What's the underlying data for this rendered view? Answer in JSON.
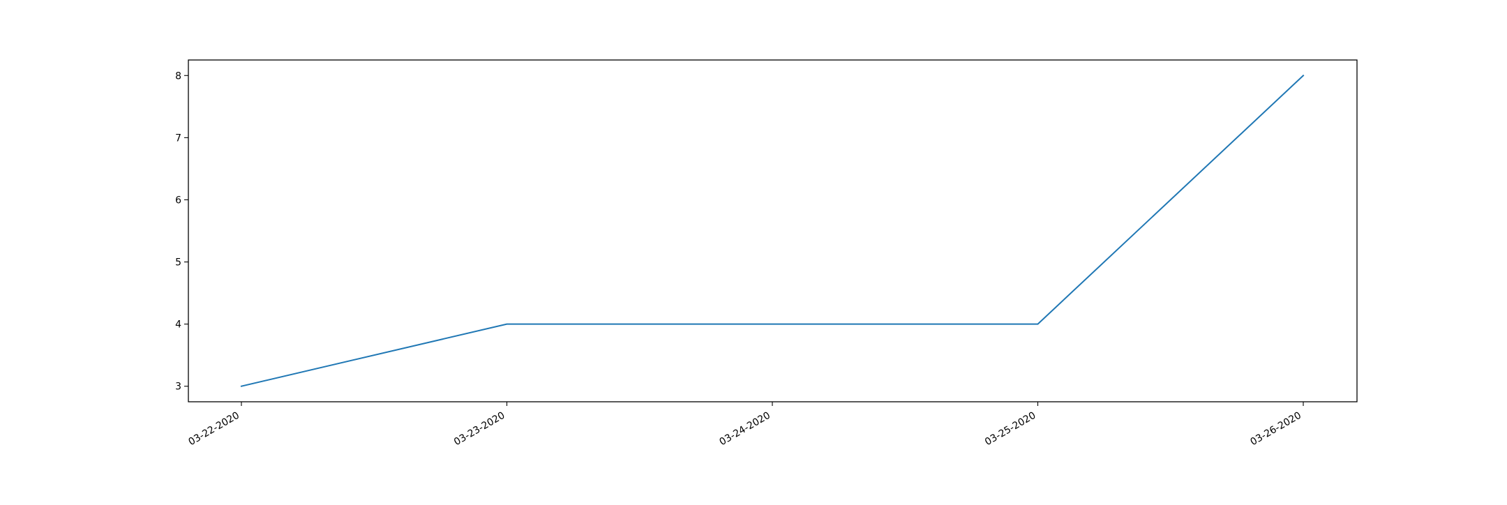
{
  "chart_data": {
    "type": "line",
    "title": "",
    "xlabel": "",
    "ylabel": "",
    "x": [
      "03-22-2020",
      "03-23-2020",
      "03-24-2020",
      "03-25-2020",
      "03-26-2020"
    ],
    "series": [
      {
        "values": [
          3,
          4,
          4,
          4,
          8
        ],
        "color": "#1f77b4"
      }
    ],
    "yticks": [
      "3",
      "4",
      "5",
      "6",
      "7",
      "8"
    ],
    "ylim": [
      2.75,
      8.25
    ],
    "grid": false,
    "legend": false
  }
}
